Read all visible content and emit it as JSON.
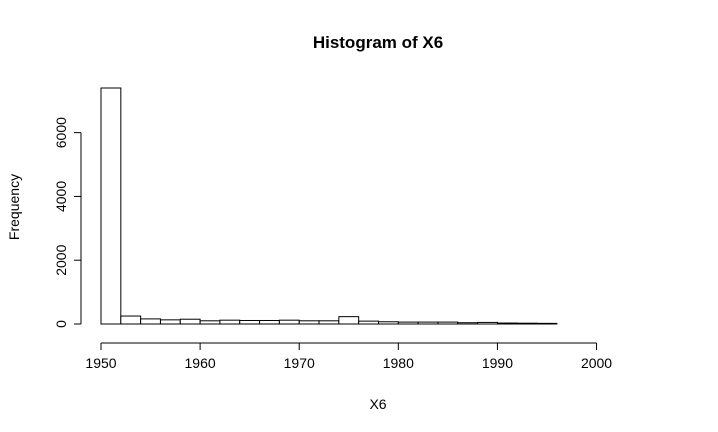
{
  "chart_data": {
    "type": "bar",
    "title": "Histogram of X6",
    "xlabel": "X6",
    "ylabel": "Frequency",
    "xlim": [
      1950,
      2006
    ],
    "ylim": [
      0,
      7400
    ],
    "x_ticks": [
      1950,
      1960,
      1970,
      1980,
      1990,
      2000
    ],
    "y_ticks": [
      0,
      2000,
      4000,
      6000
    ],
    "bin_width": 2,
    "bins": [
      {
        "start": 1950,
        "end": 1952,
        "count": 7400
      },
      {
        "start": 1952,
        "end": 1954,
        "count": 250
      },
      {
        "start": 1954,
        "end": 1956,
        "count": 160
      },
      {
        "start": 1956,
        "end": 1958,
        "count": 130
      },
      {
        "start": 1958,
        "end": 1960,
        "count": 150
      },
      {
        "start": 1960,
        "end": 1962,
        "count": 100
      },
      {
        "start": 1962,
        "end": 1964,
        "count": 120
      },
      {
        "start": 1964,
        "end": 1966,
        "count": 110
      },
      {
        "start": 1966,
        "end": 1968,
        "count": 110
      },
      {
        "start": 1968,
        "end": 1970,
        "count": 120
      },
      {
        "start": 1970,
        "end": 1972,
        "count": 100
      },
      {
        "start": 1972,
        "end": 1974,
        "count": 100
      },
      {
        "start": 1974,
        "end": 1976,
        "count": 230
      },
      {
        "start": 1976,
        "end": 1978,
        "count": 90
      },
      {
        "start": 1978,
        "end": 1980,
        "count": 70
      },
      {
        "start": 1980,
        "end": 1982,
        "count": 60
      },
      {
        "start": 1982,
        "end": 1984,
        "count": 60
      },
      {
        "start": 1984,
        "end": 1986,
        "count": 60
      },
      {
        "start": 1986,
        "end": 1988,
        "count": 40
      },
      {
        "start": 1988,
        "end": 1990,
        "count": 50
      },
      {
        "start": 1990,
        "end": 1992,
        "count": 30
      },
      {
        "start": 1992,
        "end": 1994,
        "count": 25
      },
      {
        "start": 1994,
        "end": 1996,
        "count": 20
      },
      {
        "start": 1996,
        "end": 1998,
        "count": 0
      },
      {
        "start": 1998,
        "end": 2000,
        "count": 0
      },
      {
        "start": 2000,
        "end": 2002,
        "count": 0
      },
      {
        "start": 2002,
        "end": 2004,
        "count": 0
      },
      {
        "start": 2004,
        "end": 2006,
        "count": 0
      }
    ]
  }
}
